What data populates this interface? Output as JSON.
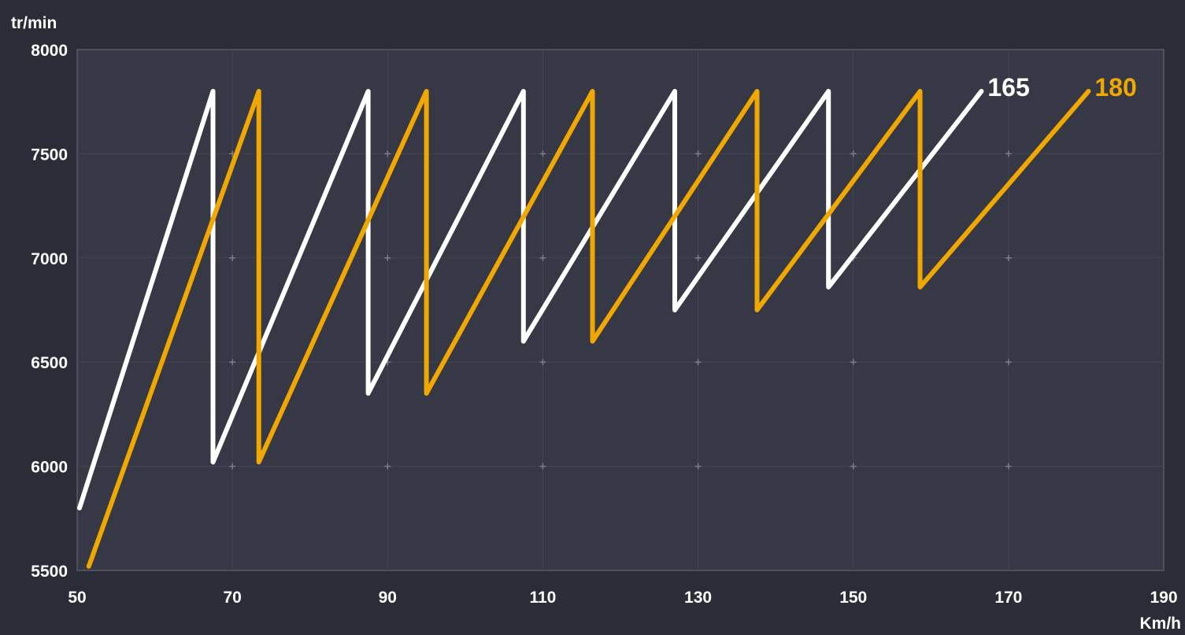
{
  "chart_data": {
    "type": "line",
    "xlabel": "Km/h",
    "ylabel": "tr/min",
    "xlim": [
      50,
      190
    ],
    "ylim": [
      5500,
      8000
    ],
    "x_ticks": [
      "50",
      "70",
      "90",
      "110",
      "130",
      "150",
      "170",
      "190"
    ],
    "y_ticks": [
      "8000",
      "7500",
      "7000",
      "6500",
      "6000",
      "5500"
    ],
    "grid": true,
    "legend": "inline labels at line ends",
    "series": [
      {
        "name": "165",
        "color": "#ffffff",
        "points": [
          [
            50.3,
            5800
          ],
          [
            67.5,
            7800
          ],
          [
            67.5,
            6020
          ],
          [
            87.5,
            7800
          ],
          [
            87.5,
            6350
          ],
          [
            107.5,
            7800
          ],
          [
            107.5,
            6600
          ],
          [
            127.0,
            7800
          ],
          [
            127.0,
            6750
          ],
          [
            146.8,
            7800
          ],
          [
            146.8,
            6860
          ],
          [
            166.5,
            7800
          ]
        ]
      },
      {
        "name": "180",
        "color": "#f0a800",
        "points": [
          [
            51.5,
            5520
          ],
          [
            73.4,
            7800
          ],
          [
            73.4,
            6020
          ],
          [
            95.0,
            7800
          ],
          [
            95.0,
            6350
          ],
          [
            116.4,
            7800
          ],
          [
            116.4,
            6600
          ],
          [
            137.6,
            7800
          ],
          [
            137.6,
            6750
          ],
          [
            158.6,
            7800
          ],
          [
            158.6,
            6860
          ],
          [
            180.3,
            7800
          ]
        ]
      }
    ]
  }
}
